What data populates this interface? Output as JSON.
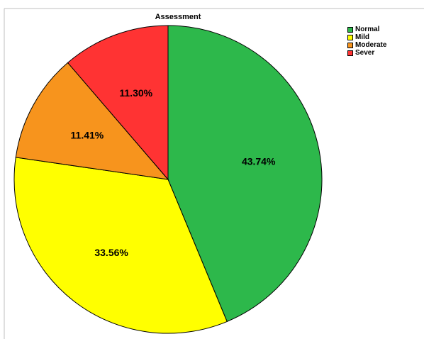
{
  "chart_data": {
    "type": "pie",
    "title": "Assessment",
    "categories": [
      "Normal",
      "Mild",
      "Moderate",
      "Sever"
    ],
    "values": [
      43.74,
      33.56,
      11.41,
      11.3
    ],
    "value_labels": [
      "43.74%",
      "33.56%",
      "11.41%",
      "11.30%"
    ],
    "colors": [
      "#2db84b",
      "#ffff00",
      "#f7941d",
      "#ff3333"
    ],
    "start_angle": "12 o'clock",
    "direction": "clockwise",
    "legend_position": "top-right"
  }
}
